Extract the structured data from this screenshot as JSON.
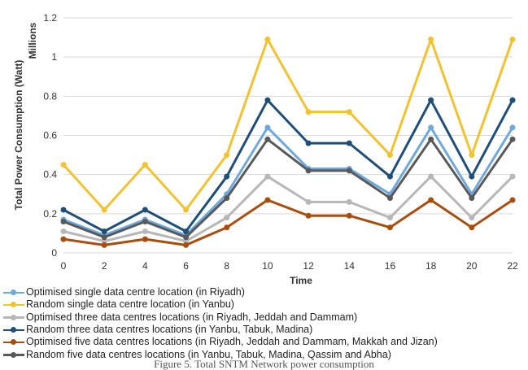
{
  "chart_data": {
    "type": "line",
    "ylabel": "Total Power Consumption (Watt)",
    "yunit": "Millions",
    "xlabel": "Time",
    "x": [
      0,
      2,
      4,
      6,
      8,
      10,
      12,
      14,
      16,
      18,
      20,
      22
    ],
    "xticks": [
      "0",
      "2",
      "4",
      "6",
      "8",
      "10",
      "12",
      "14",
      "16",
      "18",
      "20",
      "22"
    ],
    "ylim": [
      0,
      1.2
    ],
    "yticks": [
      "0",
      "0.2",
      "0.4",
      "0.6",
      "0.8",
      "1",
      "1.2"
    ],
    "ytick_values": [
      0,
      0.2,
      0.4,
      0.6,
      0.8,
      1.0,
      1.2
    ],
    "grid": true,
    "legend_position": "bottom",
    "series": [
      {
        "name": "Optimised single data centre location (in Riyadh)",
        "color": "#6fa8dc",
        "values": [
          0.17,
          0.09,
          0.17,
          0.09,
          0.3,
          0.64,
          0.43,
          0.43,
          0.3,
          0.64,
          0.3,
          0.64
        ]
      },
      {
        "name": "Random single data centre location (in Yanbu)",
        "color": "#f1c232",
        "values": [
          0.45,
          0.22,
          0.45,
          0.22,
          0.5,
          1.09,
          0.72,
          0.72,
          0.5,
          1.09,
          0.5,
          1.09
        ]
      },
      {
        "name": "Optimised three data centres locations (in Riyadh, Jeddah and Dammam)",
        "color": "#b7b7b7",
        "values": [
          0.11,
          0.06,
          0.11,
          0.06,
          0.18,
          0.39,
          0.26,
          0.26,
          0.18,
          0.39,
          0.18,
          0.39
        ]
      },
      {
        "name": "Random three data centres locations (in Yanbu, Tabuk, Madina)",
        "color": "#1f4e79",
        "values": [
          0.22,
          0.11,
          0.22,
          0.11,
          0.39,
          0.78,
          0.56,
          0.56,
          0.39,
          0.78,
          0.39,
          0.78
        ]
      },
      {
        "name": "Optimised five data centres locations (in Riyadh, Jeddah and Dammam, Makkah and Jizan)",
        "color": "#a94d0f",
        "values": [
          0.07,
          0.04,
          0.07,
          0.04,
          0.13,
          0.27,
          0.19,
          0.19,
          0.13,
          0.27,
          0.13,
          0.27
        ]
      },
      {
        "name": "Random five data centres locations (in Yanbu, Tabuk, Madina, Qassim and Abha)",
        "color": "#595959",
        "values": [
          0.16,
          0.08,
          0.16,
          0.08,
          0.28,
          0.58,
          0.42,
          0.42,
          0.28,
          0.58,
          0.28,
          0.58
        ]
      }
    ]
  },
  "caption": "Figure 5. Total SNTM Network power consumption"
}
